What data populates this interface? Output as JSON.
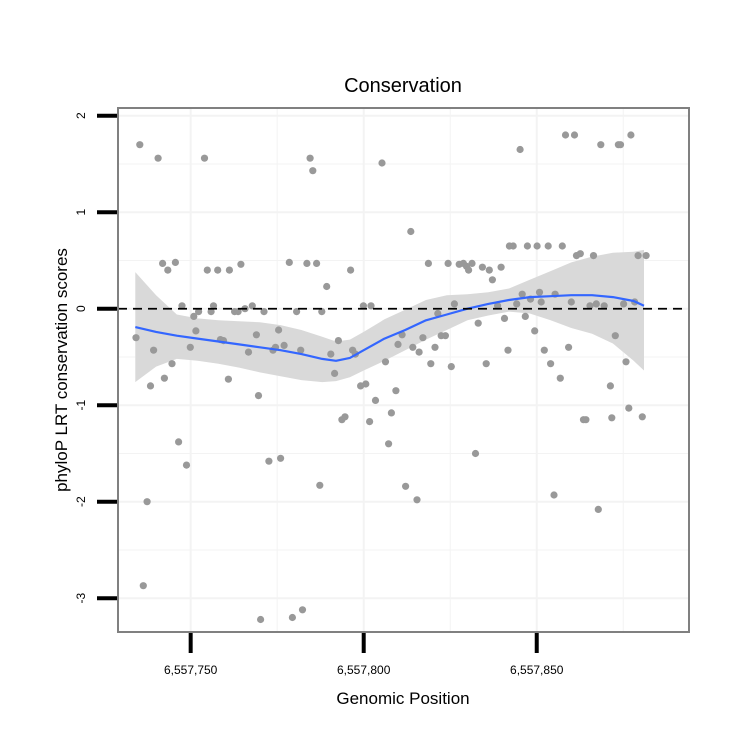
{
  "chart_data": {
    "type": "scatter",
    "title": "Conservation",
    "xlabel": "Genomic Position",
    "ylabel": "phyloP LRT conservation scores",
    "xlim": [
      6557729,
      6557894
    ],
    "ylim": [
      -3.35,
      2.08
    ],
    "x_ticks": [
      6557750,
      6557800,
      6557850
    ],
    "x_tick_labels": [
      "6,557,750",
      "6,557,800",
      "6,557,850"
    ],
    "y_ticks": [
      2,
      1,
      0,
      -1,
      -2,
      -3
    ],
    "y_tick_labels": [
      "2",
      "1",
      "0",
      "-1",
      "-2",
      "-3"
    ],
    "reference_line": {
      "y": 0,
      "style": "dashed",
      "color": "#000000"
    },
    "colors": {
      "points": "#999999",
      "smooth": "#3366ff",
      "ribbon": "#d9d9d9",
      "frame": "#808080",
      "grid": "#f3f3f3"
    },
    "points": [
      [
        6557734.2,
        -0.3
      ],
      [
        6557735.3,
        1.7
      ],
      [
        6557736.3,
        -2.87
      ],
      [
        6557737.4,
        -2.0
      ],
      [
        6557738.4,
        -0.8
      ],
      [
        6557739.3,
        -0.43
      ],
      [
        6557740.6,
        1.56
      ],
      [
        6557741.9,
        0.47
      ],
      [
        6557742.4,
        -0.72
      ],
      [
        6557743.4,
        0.4
      ],
      [
        6557744.6,
        -0.57
      ],
      [
        6557745.6,
        0.48
      ],
      [
        6557746.5,
        -1.38
      ],
      [
        6557747.5,
        0.03
      ],
      [
        6557748.8,
        -1.62
      ],
      [
        6557749.9,
        -0.4
      ],
      [
        6557750.9,
        -0.08
      ],
      [
        6557751.5,
        -0.23
      ],
      [
        6557752.3,
        -0.03
      ],
      [
        6557754.0,
        1.56
      ],
      [
        6557754.8,
        0.4
      ],
      [
        6557755.9,
        -0.03
      ],
      [
        6557756.6,
        0.03
      ],
      [
        6557757.8,
        0.4
      ],
      [
        6557758.6,
        -0.32
      ],
      [
        6557759.5,
        -0.33
      ],
      [
        6557760.9,
        -0.73
      ],
      [
        6557761.2,
        0.4
      ],
      [
        6557762.7,
        -0.03
      ],
      [
        6557763.7,
        -0.03
      ],
      [
        6557764.5,
        0.46
      ],
      [
        6557765.7,
        0.0
      ],
      [
        6557766.7,
        -0.45
      ],
      [
        6557767.8,
        0.03
      ],
      [
        6557769.0,
        -0.27
      ],
      [
        6557769.6,
        -0.9
      ],
      [
        6557770.2,
        -3.22
      ],
      [
        6557771.2,
        -0.03
      ],
      [
        6557772.6,
        -1.58
      ],
      [
        6557773.8,
        -0.43
      ],
      [
        6557774.5,
        -0.4
      ],
      [
        6557775.4,
        -0.22
      ],
      [
        6557776.0,
        -1.55
      ],
      [
        6557777.0,
        -0.38
      ],
      [
        6557778.5,
        0.48
      ],
      [
        6557779.4,
        -3.2
      ],
      [
        6557780.6,
        -0.03
      ],
      [
        6557781.8,
        -0.43
      ],
      [
        6557782.3,
        -3.12
      ],
      [
        6557783.6,
        0.47
      ],
      [
        6557784.5,
        1.56
      ],
      [
        6557785.3,
        1.43
      ],
      [
        6557786.4,
        0.47
      ],
      [
        6557787.3,
        -1.83
      ],
      [
        6557787.9,
        -0.03
      ],
      [
        6557789.3,
        0.23
      ],
      [
        6557790.5,
        -0.47
      ],
      [
        6557791.6,
        -0.67
      ],
      [
        6557792.7,
        -0.33
      ],
      [
        6557793.7,
        -1.15
      ],
      [
        6557794.6,
        -1.12
      ],
      [
        6557796.2,
        0.4
      ],
      [
        6557796.8,
        -0.43
      ],
      [
        6557797.6,
        -0.47
      ],
      [
        6557799.1,
        -0.8
      ],
      [
        6557799.9,
        0.03
      ],
      [
        6557800.6,
        -0.78
      ],
      [
        6557801.7,
        -1.17
      ],
      [
        6557802.1,
        0.03
      ],
      [
        6557803.4,
        -0.95
      ],
      [
        6557805.3,
        1.51
      ],
      [
        6557806.3,
        -0.55
      ],
      [
        6557807.2,
        -1.4
      ],
      [
        6557808.0,
        -1.08
      ],
      [
        6557809.3,
        -0.85
      ],
      [
        6557809.9,
        -0.37
      ],
      [
        6557811.1,
        -0.27
      ],
      [
        6557812.1,
        -1.84
      ],
      [
        6557813.6,
        0.8
      ],
      [
        6557814.2,
        -0.4
      ],
      [
        6557815.4,
        -1.98
      ],
      [
        6557816.0,
        -0.45
      ],
      [
        6557817.1,
        -0.3
      ],
      [
        6557818.7,
        0.47
      ],
      [
        6557819.4,
        -0.57
      ],
      [
        6557820.6,
        -0.4
      ],
      [
        6557821.4,
        -0.05
      ],
      [
        6557822.4,
        -0.28
      ],
      [
        6557823.6,
        -0.28
      ],
      [
        6557824.4,
        0.47
      ],
      [
        6557825.3,
        -0.6
      ],
      [
        6557826.2,
        0.05
      ],
      [
        6557827.6,
        0.46
      ],
      [
        6557828.8,
        0.47
      ],
      [
        6557829.7,
        0.44
      ],
      [
        6557830.3,
        0.4
      ],
      [
        6557831.3,
        0.47
      ],
      [
        6557832.3,
        -1.5
      ],
      [
        6557833.1,
        -0.15
      ],
      [
        6557834.3,
        0.43
      ],
      [
        6557835.4,
        -0.57
      ],
      [
        6557836.3,
        0.4
      ],
      [
        6557837.2,
        0.3
      ],
      [
        6557838.7,
        0.03
      ],
      [
        6557839.7,
        0.43
      ],
      [
        6557840.7,
        -0.1
      ],
      [
        6557841.7,
        -0.43
      ],
      [
        6557842.1,
        0.65
      ],
      [
        6557843.2,
        0.65
      ],
      [
        6557844.2,
        0.05
      ],
      [
        6557845.2,
        1.65
      ],
      [
        6557845.8,
        0.15
      ],
      [
        6557846.7,
        -0.08
      ],
      [
        6557847.3,
        0.65
      ],
      [
        6557848.2,
        0.1
      ],
      [
        6557849.4,
        -0.23
      ],
      [
        6557850.1,
        0.65
      ],
      [
        6557850.8,
        0.17
      ],
      [
        6557851.3,
        0.07
      ],
      [
        6557852.2,
        -0.43
      ],
      [
        6557853.3,
        0.65
      ],
      [
        6557854.0,
        -0.57
      ],
      [
        6557855.0,
        -1.93
      ],
      [
        6557855.3,
        0.15
      ],
      [
        6557856.8,
        -0.72
      ],
      [
        6557857.4,
        0.65
      ],
      [
        6557858.3,
        1.8
      ],
      [
        6557859.2,
        -0.4
      ],
      [
        6557860.0,
        0.07
      ],
      [
        6557860.9,
        1.8
      ],
      [
        6557861.5,
        0.55
      ],
      [
        6557862.6,
        0.57
      ],
      [
        6557863.5,
        -1.15
      ],
      [
        6557864.2,
        -1.15
      ],
      [
        6557865.4,
        0.03
      ],
      [
        6557866.4,
        0.55
      ],
      [
        6557867.2,
        0.05
      ],
      [
        6557867.8,
        -2.08
      ],
      [
        6557868.5,
        1.7
      ],
      [
        6557869.5,
        0.03
      ],
      [
        6557871.3,
        -0.8
      ],
      [
        6557871.7,
        -1.13
      ],
      [
        6557872.7,
        -0.28
      ],
      [
        6557873.6,
        1.7
      ],
      [
        6557874.2,
        1.7
      ],
      [
        6557875.1,
        0.05
      ],
      [
        6557875.8,
        -0.55
      ],
      [
        6557876.6,
        -1.03
      ],
      [
        6557877.2,
        1.8
      ],
      [
        6557878.3,
        0.07
      ],
      [
        6557879.3,
        0.55
      ],
      [
        6557880.5,
        -1.12
      ],
      [
        6557881.6,
        0.55
      ]
    ],
    "smooth": {
      "x": [
        6557734,
        6557740,
        6557746,
        6557752,
        6557758,
        6557764,
        6557770,
        6557776,
        6557782,
        6557788,
        6557792,
        6557796,
        6557800,
        6557806,
        6557812,
        6557818,
        6557824,
        6557830,
        6557836,
        6557842,
        6557848,
        6557854,
        6557860,
        6557866,
        6557872,
        6557878,
        6557881
      ],
      "y": [
        -0.19,
        -0.24,
        -0.28,
        -0.31,
        -0.34,
        -0.37,
        -0.4,
        -0.43,
        -0.47,
        -0.52,
        -0.54,
        -0.51,
        -0.43,
        -0.31,
        -0.22,
        -0.12,
        -0.06,
        0.0,
        0.05,
        0.09,
        0.12,
        0.13,
        0.14,
        0.14,
        0.12,
        0.08,
        0.03
      ],
      "lower": [
        -0.76,
        -0.6,
        -0.52,
        -0.54,
        -0.57,
        -0.61,
        -0.66,
        -0.7,
        -0.74,
        -0.76,
        -0.75,
        -0.71,
        -0.64,
        -0.54,
        -0.43,
        -0.32,
        -0.22,
        -0.12,
        -0.07,
        -0.03,
        -0.05,
        -0.12,
        -0.2,
        -0.26,
        -0.36,
        -0.54,
        -0.64
      ],
      "upper": [
        0.38,
        0.14,
        -0.06,
        -0.1,
        -0.12,
        -0.13,
        -0.14,
        -0.17,
        -0.22,
        -0.29,
        -0.34,
        -0.32,
        -0.24,
        -0.11,
        -0.01,
        0.09,
        0.14,
        0.15,
        0.17,
        0.21,
        0.3,
        0.39,
        0.48,
        0.54,
        0.58,
        0.59,
        0.61
      ]
    }
  }
}
